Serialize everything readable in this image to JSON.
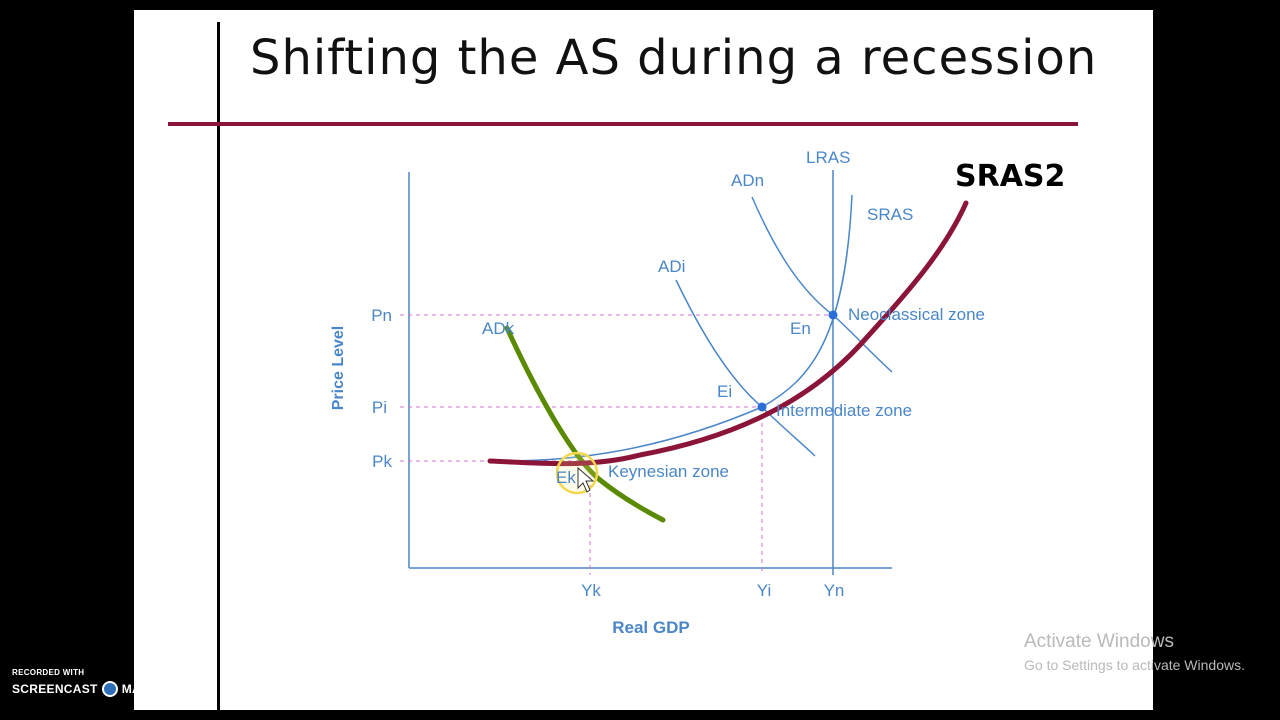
{
  "slide": {
    "title": "Shifting the AS during a recession"
  },
  "diagram": {
    "axis_labels": {
      "y": "Price Level",
      "x": "Real GDP"
    },
    "price_ticks": [
      "Pn",
      "Pi",
      "Pk"
    ],
    "output_ticks": [
      "Yk",
      "Yi",
      "Yn"
    ],
    "curve_labels": {
      "lras": "LRAS",
      "sras": "SRAS",
      "sras2": "SRAS2",
      "adn": "ADn",
      "adi": "ADi",
      "adk": "ADk"
    },
    "equilibria": {
      "en": "En",
      "ei": "Ei",
      "ek": "Ek"
    },
    "zones": {
      "neoclassical": "Neoclassical zone",
      "intermediate": "Intermediate zone",
      "keynesian": "Keynesian zone"
    },
    "colors": {
      "diagram_blue": "#4a86c8",
      "guide_pink": "#d070d0",
      "sras2": "#8b1538",
      "adk_drawn": "#5a8a00"
    }
  },
  "overlay": {
    "watermark_title": "Activate Windows",
    "watermark_sub": "Go to Settings to activate Windows.",
    "recorder_small": "RECORDED WITH",
    "recorder_brand_1": "SCREENCAST",
    "recorder_brand_2": "MATIC"
  }
}
